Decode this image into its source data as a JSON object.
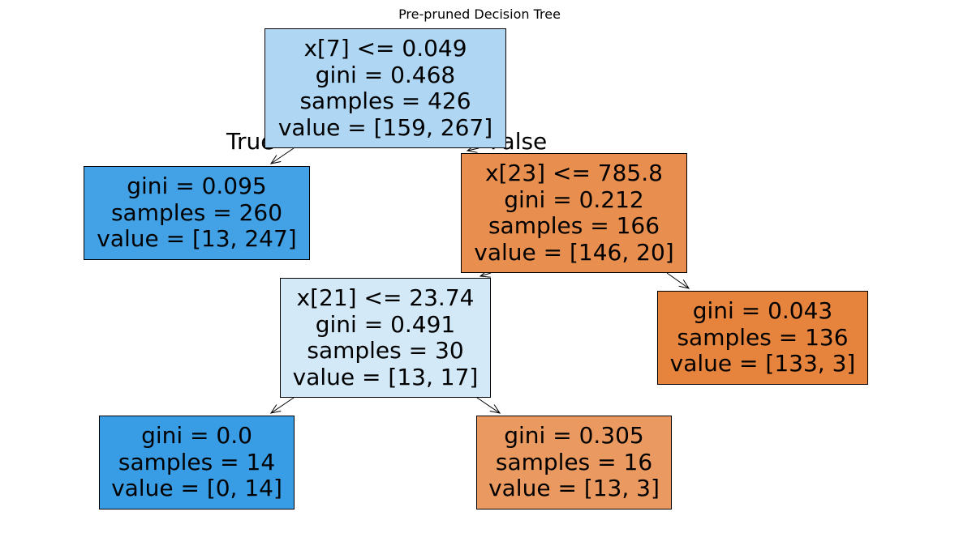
{
  "title": "Pre-pruned Decision Tree",
  "branch_labels": {
    "true": "True",
    "false": "False"
  },
  "nodes": {
    "root": {
      "lines": [
        "x[7] <= 0.049",
        "gini = 0.468",
        "samples = 426",
        "value = [159, 267]"
      ],
      "color": "#afd6f3"
    },
    "left_leaf": {
      "lines": [
        "gini = 0.095",
        "samples = 260",
        "value = [13, 247]"
      ],
      "color": "#43a2e6"
    },
    "right_split": {
      "lines": [
        "x[23] <= 785.8",
        "gini = 0.212",
        "samples = 166",
        "value = [146, 20]"
      ],
      "color": "#e88f50"
    },
    "mid_split": {
      "lines": [
        "x[21] <= 23.74",
        "gini = 0.491",
        "samples = 30",
        "value = [13, 17]"
      ],
      "color": "#d3e9f8"
    },
    "right_leaf": {
      "lines": [
        "gini = 0.043",
        "samples = 136",
        "value = [133, 3]"
      ],
      "color": "#e6843d"
    },
    "ll_leaf": {
      "lines": [
        "gini = 0.0",
        "samples = 14",
        "value = [0, 14]"
      ],
      "color": "#399de5"
    },
    "lr_leaf": {
      "lines": [
        "gini = 0.305",
        "samples = 16",
        "value = [13, 3]"
      ],
      "color": "#ea9a61"
    }
  }
}
